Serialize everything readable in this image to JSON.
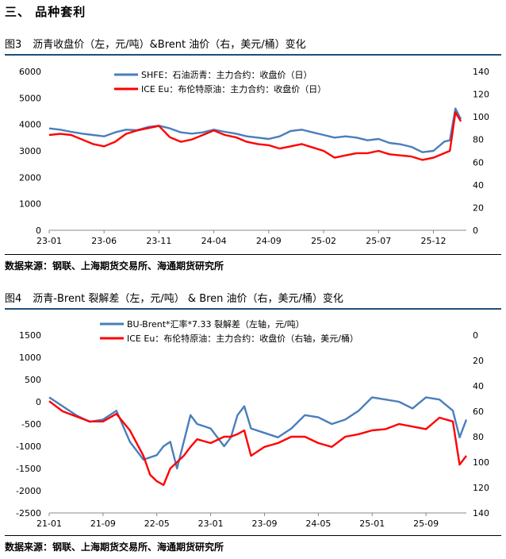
{
  "section_title": "三、   品种套利",
  "figures": [
    {
      "label": "图3",
      "title": "沥青收盘价（左，元/吨）&Brent 油价（右，美元/桶）变化",
      "source": "数据来源：钢联、上海期货交易所、海通期货研究所"
    },
    {
      "label": "图4",
      "title": "沥青-Brent 裂解差（左，元/吨） & Bren 油价（右，美元/桶）变化",
      "source": "数据来源：钢联、上海期货交易所、海通期货研究所"
    }
  ],
  "chart_data": [
    {
      "type": "line",
      "x_ticks": [
        "23-01",
        "23-06",
        "23-11",
        "24-04",
        "24-09",
        "25-02",
        "25-07",
        "25-12"
      ],
      "x_range": [
        0,
        38
      ],
      "x_tick_pos": [
        0,
        5,
        10,
        15,
        20,
        25,
        30,
        35
      ],
      "ylim_left": [
        0,
        6000
      ],
      "yticks_left": [
        0,
        1000,
        2000,
        3000,
        4000,
        5000,
        6000
      ],
      "ylim_right": [
        0,
        140
      ],
      "yticks_right": [
        0,
        20,
        40,
        60,
        80,
        100,
        120,
        140
      ],
      "series": [
        {
          "name": "SHFE：石油沥青：主力合约：收盘价（日）",
          "axis": "left",
          "color": "#4a7ebb",
          "x": [
            0,
            1,
            2,
            3,
            4,
            5,
            6,
            7,
            8,
            9,
            10,
            11,
            12,
            13,
            14,
            15,
            16,
            17,
            18,
            19,
            20,
            21,
            22,
            23,
            24,
            25,
            26,
            27,
            28,
            29,
            30,
            31,
            32,
            33,
            34,
            35,
            36,
            36.5,
            37,
            37.5
          ],
          "values": [
            3850,
            3800,
            3720,
            3650,
            3600,
            3550,
            3700,
            3800,
            3780,
            3900,
            3950,
            3850,
            3700,
            3650,
            3700,
            3800,
            3720,
            3650,
            3550,
            3500,
            3450,
            3550,
            3750,
            3800,
            3700,
            3600,
            3500,
            3550,
            3500,
            3400,
            3450,
            3300,
            3250,
            3150,
            2950,
            3000,
            3350,
            3400,
            4600,
            4200
          ]
        },
        {
          "name": "ICE Eu：布伦特原油：主力合约：收盘价（日）",
          "axis": "right",
          "color": "#ff0000",
          "x": [
            0,
            1,
            2,
            3,
            4,
            5,
            6,
            7,
            8,
            9,
            10,
            11,
            12,
            13,
            14,
            15,
            16,
            17,
            18,
            19,
            20,
            21,
            22,
            23,
            24,
            25,
            26,
            27,
            28,
            29,
            30,
            31,
            32,
            33,
            34,
            35,
            36,
            36.5,
            37,
            37.5
          ],
          "values": [
            84,
            85,
            84,
            80,
            76,
            74,
            78,
            85,
            88,
            90,
            92,
            82,
            78,
            80,
            84,
            88,
            84,
            82,
            78,
            76,
            75,
            72,
            74,
            76,
            73,
            70,
            64,
            66,
            68,
            68,
            70,
            67,
            66,
            65,
            62,
            64,
            68,
            70,
            104,
            96
          ]
        }
      ]
    },
    {
      "type": "line",
      "x_ticks": [
        "21-01",
        "21-09",
        "22-05",
        "23-01",
        "23-09",
        "24-05",
        "25-01",
        "25-09"
      ],
      "x_range": [
        0,
        62
      ],
      "x_tick_pos": [
        0,
        8,
        16,
        24,
        32,
        40,
        48,
        56
      ],
      "ylim_left": [
        -2500,
        1500
      ],
      "yticks_left": [
        -2500,
        -2000,
        -1500,
        -1000,
        -500,
        0,
        500,
        1000,
        1500
      ],
      "ylim_right": [
        140,
        0
      ],
      "yticks_right": [
        0,
        20,
        40,
        60,
        80,
        100,
        120,
        140
      ],
      "series": [
        {
          "name": "BU-Brent*汇率*7.33 裂解差（左轴，元/吨）",
          "axis": "left",
          "color": "#4a7ebb",
          "x": [
            0,
            2,
            4,
            6,
            8,
            10,
            12,
            14,
            15,
            16,
            17,
            18,
            19,
            20,
            21,
            22,
            24,
            26,
            27,
            28,
            29,
            30,
            32,
            34,
            36,
            38,
            40,
            42,
            44,
            46,
            48,
            50,
            52,
            54,
            56,
            58,
            60,
            61,
            62
          ],
          "values": [
            100,
            -100,
            -300,
            -450,
            -400,
            -200,
            -900,
            -1300,
            -1250,
            -1200,
            -1000,
            -900,
            -1500,
            -900,
            -300,
            -500,
            -600,
            -1000,
            -800,
            -300,
            -100,
            -600,
            -700,
            -800,
            -600,
            -300,
            -350,
            -500,
            -400,
            -200,
            100,
            50,
            0,
            -150,
            100,
            50,
            -200,
            -800,
            -400
          ]
        },
        {
          "name": "ICE Eu：布伦特原油：主力合约：收盘价（右轴，美元/桶）",
          "axis": "right",
          "color": "#ff0000",
          "x": [
            0,
            2,
            4,
            6,
            8,
            10,
            12,
            14,
            15,
            16,
            17,
            18,
            19,
            20,
            21,
            22,
            24,
            26,
            27,
            28,
            29,
            30,
            32,
            34,
            36,
            38,
            40,
            42,
            44,
            46,
            48,
            50,
            52,
            54,
            56,
            58,
            60,
            61,
            62
          ],
          "values": [
            52,
            60,
            64,
            68,
            68,
            62,
            75,
            95,
            110,
            115,
            118,
            105,
            100,
            95,
            88,
            82,
            85,
            80,
            80,
            78,
            75,
            95,
            88,
            85,
            80,
            80,
            85,
            88,
            80,
            78,
            75,
            74,
            70,
            72,
            74,
            65,
            68,
            102,
            95
          ]
        }
      ]
    }
  ]
}
